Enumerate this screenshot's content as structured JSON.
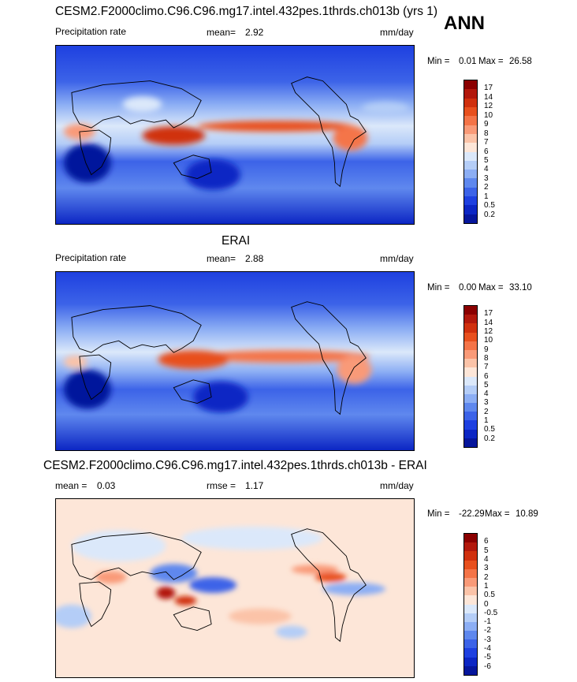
{
  "season": "ANN",
  "panels": [
    {
      "title": "CESM2.F2000climo.C96.C96.mg17.intel.432pes.1thrds.ch013b (yrs 1)",
      "variable": "Precipitation rate",
      "stat_label": "mean=",
      "stat_value": "2.92",
      "units": "mm/day",
      "min_label": "Min =",
      "min_value": "0.01",
      "max_label": "Max =",
      "max_value": "26.58",
      "colorbar": {
        "levels": [
          "17",
          "14",
          "12",
          "10",
          "9",
          "8",
          "7",
          "6",
          "5",
          "4",
          "3",
          "2",
          "1",
          "0.5",
          "0.2"
        ],
        "colors": [
          "#8b0000",
          "#b2180c",
          "#d0300e",
          "#e8501e",
          "#f47448",
          "#f99a78",
          "#fbc3a8",
          "#fde6d8",
          "#dbe8fa",
          "#b4cdf7",
          "#8caef4",
          "#5f88ee",
          "#3c63e8",
          "#1e40e0",
          "#0c26c4",
          "#06169c"
        ]
      }
    },
    {
      "title": "ERAI",
      "variable": "Precipitation rate",
      "stat_label": "mean=",
      "stat_value": "2.88",
      "units": "mm/day",
      "min_label": "Min =",
      "min_value": "0.00",
      "max_label": "Max =",
      "max_value": "33.10",
      "colorbar": {
        "levels": [
          "17",
          "14",
          "12",
          "10",
          "9",
          "8",
          "7",
          "6",
          "5",
          "4",
          "3",
          "2",
          "1",
          "0.5",
          "0.2"
        ],
        "colors": [
          "#8b0000",
          "#b2180c",
          "#d0300e",
          "#e8501e",
          "#f47448",
          "#f99a78",
          "#fbc3a8",
          "#fde6d8",
          "#dbe8fa",
          "#b4cdf7",
          "#8caef4",
          "#5f88ee",
          "#3c63e8",
          "#1e40e0",
          "#0c26c4",
          "#06169c"
        ]
      }
    },
    {
      "title": "CESM2.F2000climo.C96.C96.mg17.intel.432pes.1thrds.ch013b - ERAI",
      "stat_label": "mean =",
      "stat_value": "0.03",
      "rmse_label": "rmse =",
      "rmse_value": "1.17",
      "units": "mm/day",
      "min_label": "Min =",
      "min_value": "-22.29",
      "max_label": "Max =",
      "max_value": "10.89",
      "colorbar": {
        "levels": [
          "6",
          "5",
          "4",
          "3",
          "2",
          "1",
          "0.5",
          "0",
          "-0.5",
          "-1",
          "-2",
          "-3",
          "-4",
          "-5",
          "-6"
        ],
        "colors": [
          "#8b0000",
          "#b2180c",
          "#d0300e",
          "#e8501e",
          "#f47448",
          "#f99a78",
          "#fbc3a8",
          "#fde6d8",
          "#dbe8fa",
          "#b4cdf7",
          "#8caef4",
          "#5f88ee",
          "#3c63e8",
          "#1e40e0",
          "#0c26c4",
          "#06169c"
        ]
      }
    }
  ]
}
